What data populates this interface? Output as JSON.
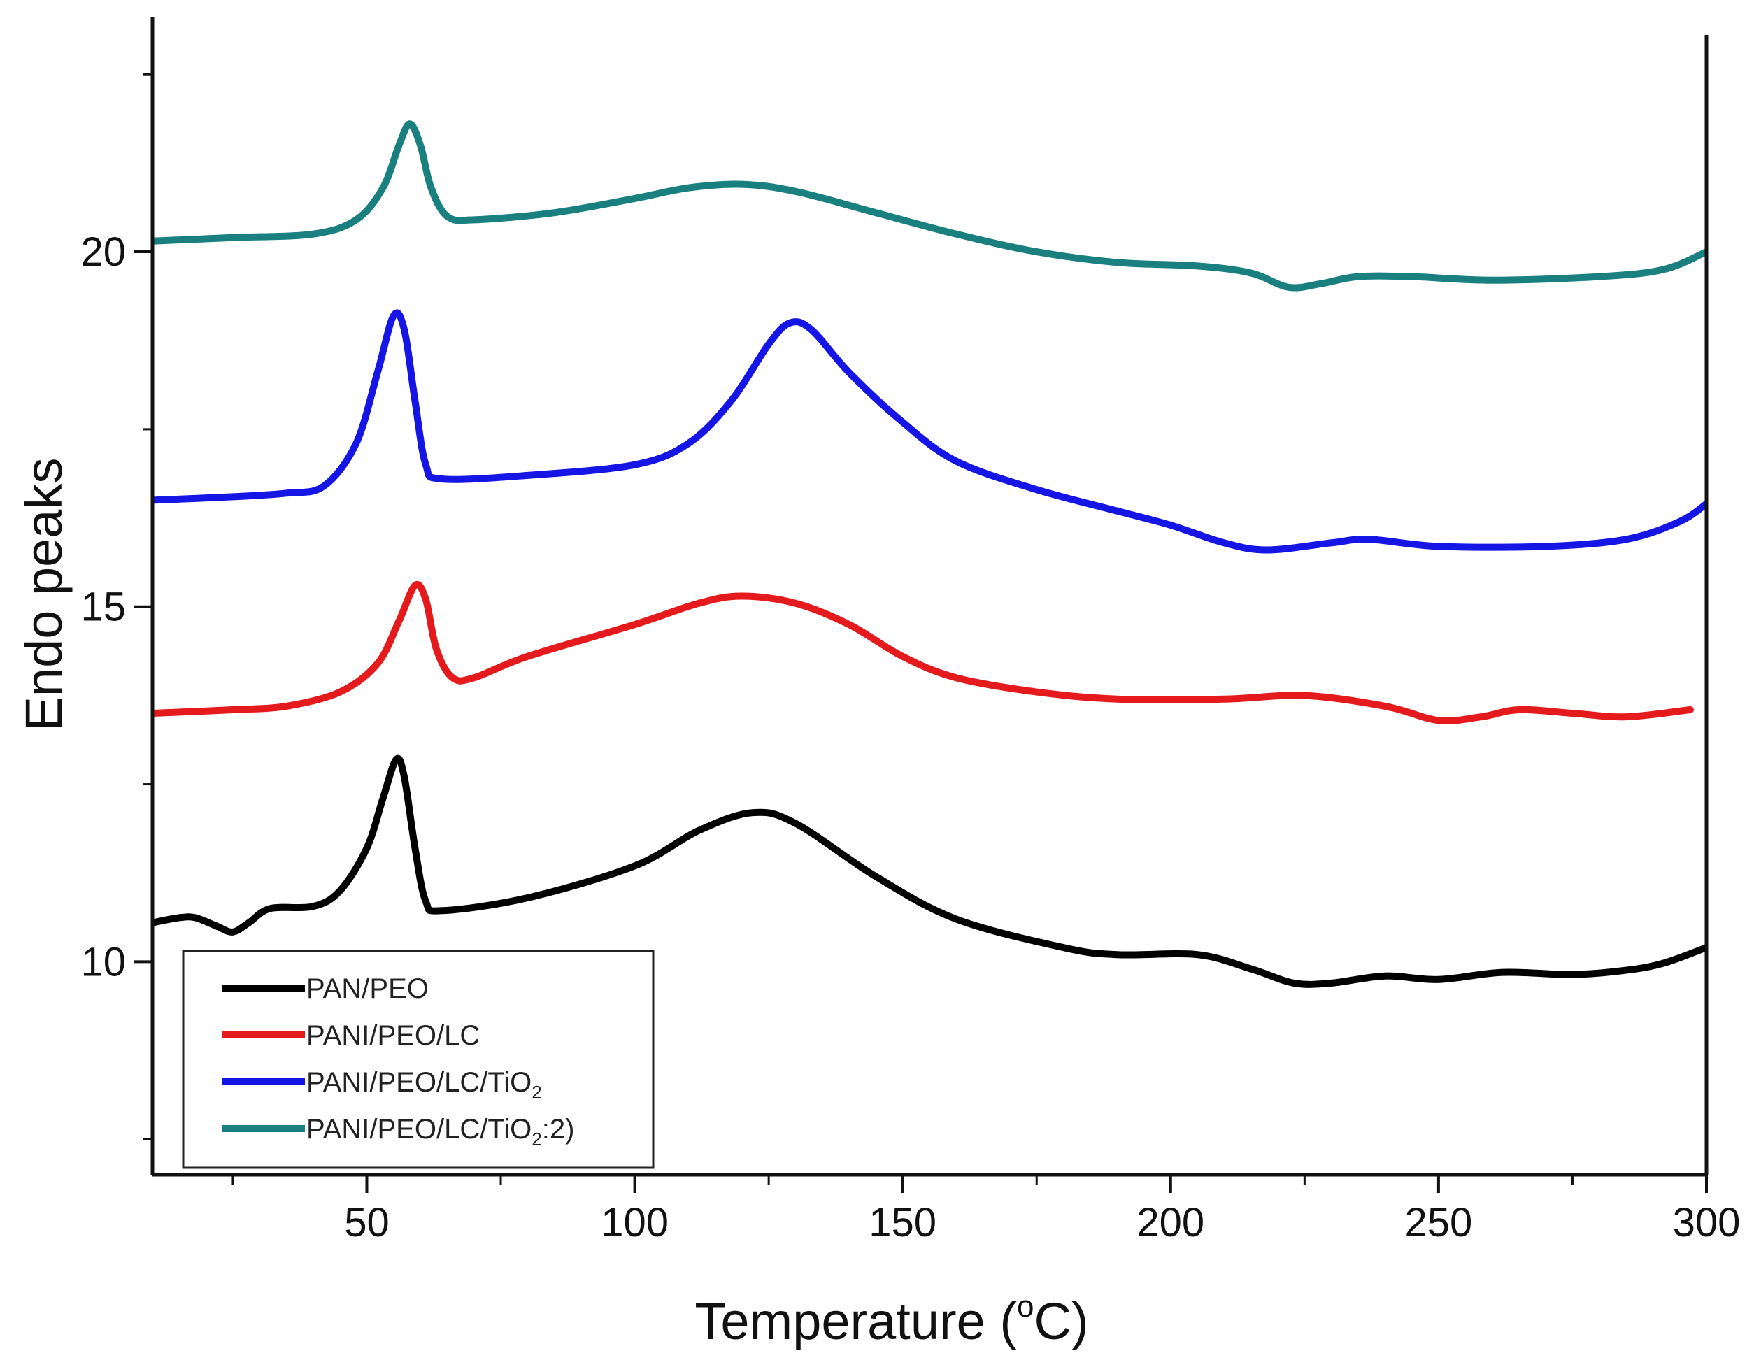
{
  "chart_data": {
    "type": "line",
    "title": "",
    "xlabel": "Temperature (°C)",
    "xlabel_parts": {
      "prefix": "Temperature (",
      "sup": "o",
      "suffix": "C)"
    },
    "ylabel": "Endo peaks",
    "xlim": [
      10,
      300
    ],
    "ylim": [
      7,
      23.3
    ],
    "xticks": [
      50,
      100,
      150,
      200,
      250,
      300
    ],
    "yticks": [
      10,
      15,
      20
    ],
    "legend_position": "bottom-left",
    "series": [
      {
        "name": "PAN/PEO",
        "label_parts": {
          "main": "PAN/PEO",
          "sub": "",
          "tail": ""
        },
        "color": "#000000",
        "points": [
          [
            10,
            10.55
          ],
          [
            15,
            10.62
          ],
          [
            18,
            10.62
          ],
          [
            22,
            10.5
          ],
          [
            25,
            10.42
          ],
          [
            28,
            10.55
          ],
          [
            32,
            10.75
          ],
          [
            40,
            10.78
          ],
          [
            45,
            11.0
          ],
          [
            50,
            11.6
          ],
          [
            53,
            12.3
          ],
          [
            55.5,
            12.85
          ],
          [
            57,
            12.6
          ],
          [
            59,
            11.6
          ],
          [
            61,
            10.85
          ],
          [
            64,
            10.72
          ],
          [
            80,
            10.9
          ],
          [
            100,
            11.35
          ],
          [
            112,
            11.85
          ],
          [
            122,
            12.1
          ],
          [
            130,
            11.95
          ],
          [
            145,
            11.2
          ],
          [
            160,
            10.6
          ],
          [
            180,
            10.2
          ],
          [
            190,
            10.1
          ],
          [
            205,
            10.1
          ],
          [
            215,
            9.9
          ],
          [
            223,
            9.7
          ],
          [
            230,
            9.7
          ],
          [
            240,
            9.8
          ],
          [
            250,
            9.75
          ],
          [
            262,
            9.85
          ],
          [
            275,
            9.82
          ],
          [
            285,
            9.88
          ],
          [
            292,
            9.98
          ],
          [
            300,
            10.2
          ]
        ]
      },
      {
        "name": "PANI/PEO/LC",
        "label_parts": {
          "main": "PANI/PEO/LC",
          "sub": "",
          "tail": ""
        },
        "color": "#e41a1c",
        "points": [
          [
            10,
            13.5
          ],
          [
            25,
            13.55
          ],
          [
            35,
            13.6
          ],
          [
            45,
            13.8
          ],
          [
            52,
            14.2
          ],
          [
            56,
            14.8
          ],
          [
            59,
            15.3
          ],
          [
            61,
            15.1
          ],
          [
            63,
            14.4
          ],
          [
            66,
            14.0
          ],
          [
            70,
            14.0
          ],
          [
            80,
            14.3
          ],
          [
            100,
            14.75
          ],
          [
            112,
            15.05
          ],
          [
            120,
            15.15
          ],
          [
            130,
            15.05
          ],
          [
            140,
            14.75
          ],
          [
            150,
            14.3
          ],
          [
            160,
            14.0
          ],
          [
            175,
            13.8
          ],
          [
            190,
            13.7
          ],
          [
            210,
            13.7
          ],
          [
            225,
            13.75
          ],
          [
            240,
            13.6
          ],
          [
            250,
            13.4
          ],
          [
            258,
            13.45
          ],
          [
            265,
            13.55
          ],
          [
            275,
            13.5
          ],
          [
            285,
            13.45
          ],
          [
            297,
            13.55
          ]
        ]
      },
      {
        "name": "PANI/PEO/LC/TiO2",
        "label_parts": {
          "main": "PANI/PEO/LC/TiO",
          "sub": "2",
          "tail": ""
        },
        "color": "#1515e6",
        "points": [
          [
            10,
            16.5
          ],
          [
            25,
            16.55
          ],
          [
            35,
            16.6
          ],
          [
            42,
            16.7
          ],
          [
            48,
            17.3
          ],
          [
            52,
            18.3
          ],
          [
            55,
            19.1
          ],
          [
            57,
            18.9
          ],
          [
            59,
            17.9
          ],
          [
            61,
            17.0
          ],
          [
            64,
            16.8
          ],
          [
            80,
            16.85
          ],
          [
            100,
            17.0
          ],
          [
            110,
            17.3
          ],
          [
            118,
            17.9
          ],
          [
            125,
            18.7
          ],
          [
            129,
            19.0
          ],
          [
            133,
            18.9
          ],
          [
            140,
            18.3
          ],
          [
            150,
            17.6
          ],
          [
            160,
            17.05
          ],
          [
            175,
            16.65
          ],
          [
            190,
            16.35
          ],
          [
            200,
            16.15
          ],
          [
            210,
            15.9
          ],
          [
            218,
            15.8
          ],
          [
            230,
            15.9
          ],
          [
            237,
            15.95
          ],
          [
            250,
            15.85
          ],
          [
            270,
            15.85
          ],
          [
            285,
            15.95
          ],
          [
            295,
            16.2
          ],
          [
            300,
            16.45
          ]
        ]
      },
      {
        "name": "PANI/PEO/LC/TiO2:2",
        "label_parts": {
          "main": "PANI/PEO/LC/TiO",
          "sub": "2",
          "tail": ":2)"
        },
        "color": "#1a7f7f",
        "points": [
          [
            10,
            20.15
          ],
          [
            25,
            20.2
          ],
          [
            40,
            20.25
          ],
          [
            48,
            20.45
          ],
          [
            53,
            20.9
          ],
          [
            56,
            21.5
          ],
          [
            58,
            21.8
          ],
          [
            60,
            21.5
          ],
          [
            62,
            20.9
          ],
          [
            65,
            20.5
          ],
          [
            70,
            20.45
          ],
          [
            85,
            20.55
          ],
          [
            100,
            20.75
          ],
          [
            110,
            20.9
          ],
          [
            120,
            20.95
          ],
          [
            130,
            20.85
          ],
          [
            145,
            20.55
          ],
          [
            160,
            20.25
          ],
          [
            175,
            20.0
          ],
          [
            190,
            19.85
          ],
          [
            205,
            19.8
          ],
          [
            215,
            19.7
          ],
          [
            222,
            19.5
          ],
          [
            228,
            19.55
          ],
          [
            235,
            19.65
          ],
          [
            245,
            19.65
          ],
          [
            260,
            19.6
          ],
          [
            280,
            19.65
          ],
          [
            292,
            19.75
          ],
          [
            300,
            20.0
          ]
        ]
      }
    ]
  }
}
